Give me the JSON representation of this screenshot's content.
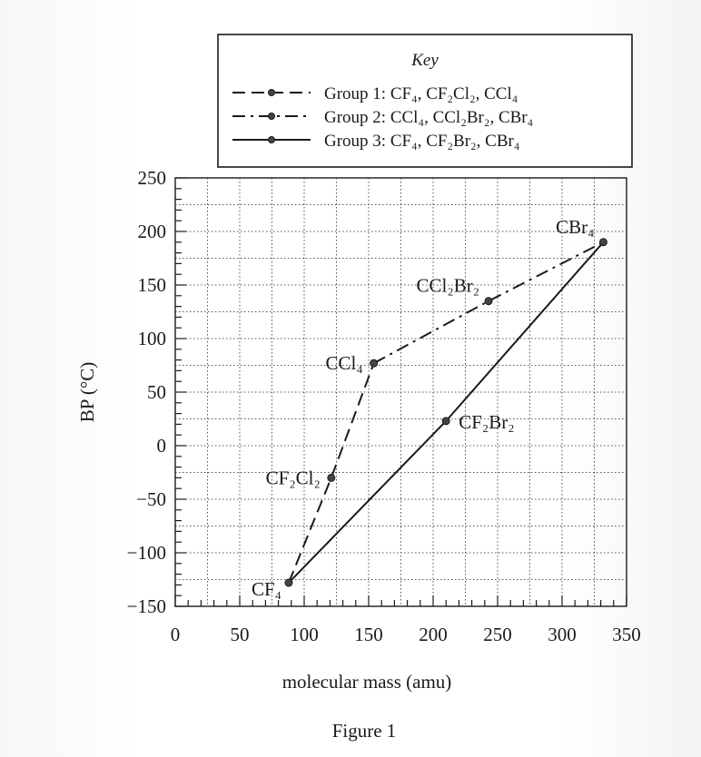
{
  "chart_data": {
    "type": "line",
    "ylabel": "BP (°C)",
    "xlabel": "molecular mass (amu)",
    "caption": "Figure 1",
    "xlim": [
      0,
      350
    ],
    "ylim": [
      -150,
      250
    ],
    "xticks": [
      0,
      50,
      100,
      150,
      200,
      250,
      300,
      350
    ],
    "yticks": [
      -150,
      -100,
      -50,
      0,
      50,
      100,
      150,
      200,
      250
    ],
    "grid": true,
    "legend": {
      "title": "Key",
      "placement": "top",
      "entries": [
        {
          "label": "Group 1: CF₄, CF₂Cl₂, CCl₄",
          "series": 0
        },
        {
          "label": "Group 2: CCl₄, CCl₂Br₂, CBr₄",
          "series": 1
        },
        {
          "label": "Group 3: CF₄, CF₂Br₂, CBr₄",
          "series": 2
        }
      ]
    },
    "series": [
      {
        "name": "Group 1",
        "style": "dashed",
        "points": [
          {
            "x": 88,
            "y": -128,
            "label": "CF₄"
          },
          {
            "x": 121,
            "y": -30,
            "label": "CF₂Cl₂"
          },
          {
            "x": 154,
            "y": 77,
            "label": "CCl₄"
          }
        ]
      },
      {
        "name": "Group 2",
        "style": "dash-dot",
        "points": [
          {
            "x": 154,
            "y": 77,
            "label": "CCl₄"
          },
          {
            "x": 243,
            "y": 135,
            "label": "CCl₂Br₂"
          },
          {
            "x": 332,
            "y": 190,
            "label": "CBr₄"
          }
        ]
      },
      {
        "name": "Group 3",
        "style": "solid",
        "points": [
          {
            "x": 88,
            "y": -128,
            "label": "CF₄"
          },
          {
            "x": 210,
            "y": 23,
            "label": "CF₂Br₂"
          },
          {
            "x": 332,
            "y": 190,
            "label": "CBr₄"
          }
        ]
      }
    ],
    "point_labels": [
      {
        "text": "CBr₄",
        "x": 332,
        "y": 190,
        "anchor": "above-left"
      },
      {
        "text": "CCl₂Br₂",
        "x": 243,
        "y": 135,
        "anchor": "above-left"
      },
      {
        "text": "CCl₄",
        "x": 154,
        "y": 77,
        "anchor": "left"
      },
      {
        "text": "CF₂Br₂",
        "x": 210,
        "y": 23,
        "anchor": "right"
      },
      {
        "text": "CF₂Cl₂",
        "x": 121,
        "y": -30,
        "anchor": "left"
      },
      {
        "text": "CF₄",
        "x": 88,
        "y": -128,
        "anchor": "below-left"
      }
    ],
    "colors": {
      "ink": "#1a1a1a",
      "grid": "#555555"
    }
  }
}
